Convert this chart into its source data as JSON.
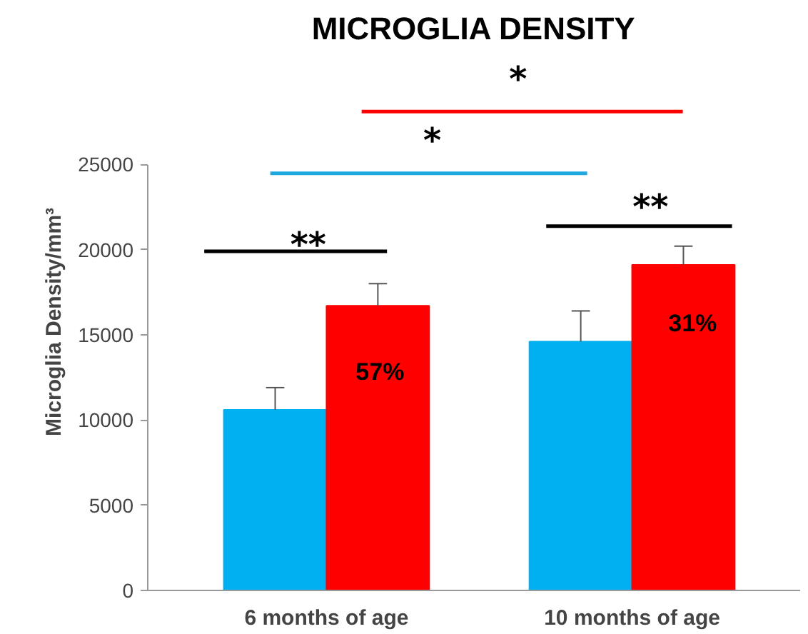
{
  "chart_data": {
    "type": "bar",
    "title": "MICROGLIA DENSITY",
    "ylabel": "Microglia Density/mm³",
    "categories": [
      "6 months of age",
      "10 months of age"
    ],
    "series": [
      {
        "color": "#00b0f0",
        "values": [
          10600,
          14600
        ],
        "errors": [
          1300,
          1800
        ]
      },
      {
        "color": "#ff0000",
        "values": [
          16700,
          19100
        ],
        "errors": [
          1300,
          1100
        ]
      }
    ],
    "ylim": [
      0,
      25000
    ],
    "yticks": [
      0,
      5000,
      10000,
      15000,
      20000,
      25000
    ],
    "grid": false,
    "annotations": [
      "**",
      "*",
      "*",
      "**",
      "57%",
      "31%"
    ]
  }
}
